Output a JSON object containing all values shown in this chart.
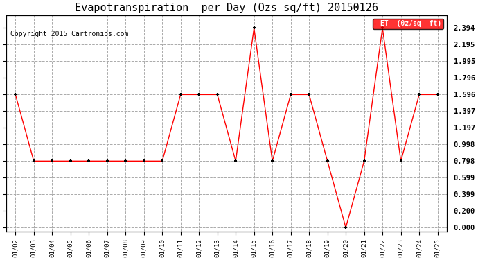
{
  "title": "Evapotranspiration  per Day (Ozs sq/ft) 20150126",
  "copyright": "Copyright 2015 Cartronics.com",
  "legend_label": "ET  (0z/sq  ft)",
  "x_labels": [
    "01/02",
    "01/03",
    "01/04",
    "01/05",
    "01/06",
    "01/07",
    "01/08",
    "01/09",
    "01/10",
    "01/11",
    "01/12",
    "01/13",
    "01/14",
    "01/15",
    "01/16",
    "01/17",
    "01/18",
    "01/19",
    "01/20",
    "01/21",
    "01/22",
    "01/23",
    "01/24",
    "01/25"
  ],
  "y_values": [
    1.596,
    0.798,
    0.798,
    0.798,
    0.798,
    0.798,
    0.798,
    0.798,
    0.798,
    1.596,
    1.596,
    1.596,
    0.798,
    2.394,
    0.798,
    1.596,
    1.596,
    0.798,
    0.0,
    0.798,
    2.394,
    0.798,
    1.596,
    1.596
  ],
  "y_ticks": [
    0.0,
    0.2,
    0.399,
    0.599,
    0.798,
    0.998,
    1.197,
    1.397,
    1.596,
    1.796,
    1.995,
    2.195,
    2.394
  ],
  "line_color": "red",
  "marker_color": "black",
  "bg_color": "white",
  "grid_color": "#aaaaaa",
  "title_fontsize": 11,
  "copyright_fontsize": 7,
  "legend_bg": "red",
  "legend_text_color": "white",
  "y_min": -0.05,
  "y_max": 2.55,
  "tick_fontsize": 7.5,
  "xtick_fontsize": 6.5
}
